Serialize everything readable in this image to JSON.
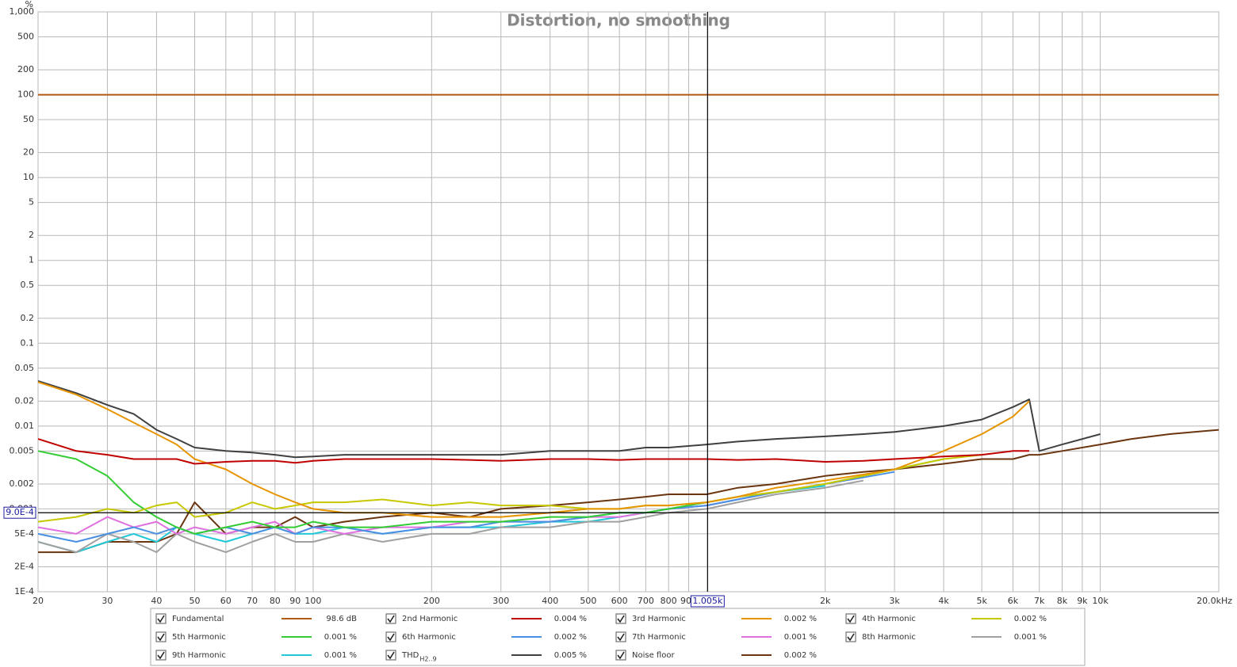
{
  "chart_data": {
    "type": "line",
    "title": "Distortion, no smoothing",
    "y_unit": "%",
    "xscale": "log",
    "yscale": "log",
    "grid": true,
    "xlim": [
      20,
      20000
    ],
    "ylim": [
      0.0001,
      1000
    ],
    "xticks": [
      20,
      30,
      40,
      50,
      60,
      70,
      80,
      90,
      100,
      200,
      300,
      400,
      500,
      600,
      700,
      800,
      900,
      {
        "value": 2000,
        "label": "2k"
      },
      {
        "value": 3000,
        "label": "3k"
      },
      {
        "value": 4000,
        "label": "4k"
      },
      {
        "value": 5000,
        "label": "5k"
      },
      {
        "value": 6000,
        "label": "6k"
      },
      {
        "value": 7000,
        "label": "7k"
      },
      {
        "value": 8000,
        "label": "8k"
      },
      {
        "value": 9000,
        "label": "9k"
      },
      {
        "value": 10000,
        "label": "10k"
      },
      {
        "value": 20000,
        "label": "20.0kHz"
      }
    ],
    "yticks": [
      {
        "value": 1000,
        "label": "1,000"
      },
      500,
      200,
      100,
      50,
      20,
      10,
      5,
      2,
      1,
      0.5,
      0.2,
      0.1,
      0.05,
      0.02,
      0.01,
      0.005,
      0.002,
      0.001,
      {
        "value": 0.0005,
        "label": "5E-4"
      },
      {
        "value": 0.0002,
        "label": "2E-4"
      },
      {
        "value": 0.0001,
        "label": "1E-4"
      }
    ],
    "cursor": {
      "x": {
        "value": 1005,
        "label": "1.005k"
      },
      "y": {
        "value": 0.0009,
        "label": "9.0E-4"
      }
    },
    "x": [
      20,
      25,
      30,
      35,
      40,
      45,
      50,
      60,
      70,
      80,
      90,
      100,
      120,
      150,
      200,
      250,
      300,
      400,
      500,
      600,
      700,
      800,
      1000,
      1200,
      1500,
      2000,
      2500,
      3000,
      4000,
      5000,
      6000,
      6600,
      7000,
      8000,
      10000,
      12000,
      15000,
      20000
    ],
    "series": [
      {
        "name": "Fundamental",
        "color": "#b05a10",
        "readout": "98.6 dB",
        "values": [
          100,
          100,
          100,
          100,
          100,
          100,
          100,
          100,
          100,
          100,
          100,
          100,
          100,
          100,
          100,
          100,
          100,
          100,
          100,
          100,
          100,
          100,
          100,
          100,
          100,
          100,
          100,
          100,
          100,
          100,
          100,
          100,
          100,
          100,
          100,
          100,
          100,
          100
        ]
      },
      {
        "name": "2nd Harmonic",
        "color": "#c00000",
        "readout": "0.004 %",
        "values": [
          0.007,
          0.005,
          0.0045,
          0.004,
          0.004,
          0.004,
          0.0035,
          0.0037,
          0.0038,
          0.0038,
          0.0036,
          0.0038,
          0.004,
          0.004,
          0.004,
          0.0039,
          0.0038,
          0.004,
          0.004,
          0.0039,
          0.004,
          0.004,
          0.004,
          0.0039,
          0.004,
          0.0037,
          0.0038,
          0.004,
          0.0043,
          0.0045,
          0.005,
          0.005,
          null,
          null,
          null,
          null,
          null,
          null
        ]
      },
      {
        "name": "3rd Harmonic",
        "color": "#e69500",
        "readout": "0.002 %",
        "values": [
          0.034,
          0.024,
          0.016,
          0.011,
          0.008,
          0.006,
          0.004,
          0.003,
          0.002,
          0.0015,
          0.0012,
          0.001,
          0.0009,
          0.0009,
          0.0008,
          0.0008,
          0.0008,
          0.0009,
          0.001,
          0.001,
          0.0011,
          0.0011,
          0.0012,
          0.0014,
          0.0018,
          0.0022,
          0.0026,
          0.003,
          0.005,
          0.008,
          0.013,
          0.02,
          null,
          null,
          null,
          null,
          null,
          null
        ]
      },
      {
        "name": "4th Harmonic",
        "color": "#c8c800",
        "readout": "0.002 %",
        "values": [
          0.0007,
          0.0008,
          0.001,
          0.0009,
          0.0011,
          0.0012,
          0.0008,
          0.0009,
          0.0012,
          0.001,
          0.0011,
          0.0012,
          0.0012,
          0.0013,
          0.0011,
          0.0012,
          0.0011,
          0.0011,
          0.001,
          0.001,
          0.0011,
          0.0011,
          0.0012,
          0.0014,
          0.0016,
          0.002,
          0.0025,
          0.003,
          0.004,
          0.0045,
          null,
          null,
          null,
          null,
          null,
          null,
          null,
          null
        ]
      },
      {
        "name": "5th Harmonic",
        "color": "#33cc33",
        "readout": "0.001 %",
        "values": [
          0.005,
          0.004,
          0.0025,
          0.0012,
          0.0008,
          0.0006,
          0.0005,
          0.0006,
          0.0007,
          0.0006,
          0.0006,
          0.0007,
          0.0006,
          0.0006,
          0.0007,
          0.0007,
          0.0007,
          0.0008,
          0.0008,
          0.0009,
          0.0009,
          0.001,
          0.0012,
          0.0014,
          0.0016,
          0.002,
          0.0025,
          0.003,
          0.004,
          null,
          null,
          null,
          null,
          null,
          null,
          null,
          null,
          null
        ]
      },
      {
        "name": "6th Harmonic",
        "color": "#4a90e2",
        "readout": "0.002 %",
        "values": [
          0.0005,
          0.0004,
          0.0005,
          0.0006,
          0.0005,
          0.0006,
          0.0005,
          0.0006,
          0.0005,
          0.0006,
          0.0005,
          0.0006,
          0.0006,
          0.0005,
          0.0006,
          0.0006,
          0.0007,
          0.0007,
          0.0008,
          0.0009,
          0.0009,
          0.001,
          0.0011,
          0.0013,
          0.0016,
          0.002,
          0.0024,
          0.0028,
          null,
          null,
          null,
          null,
          null,
          null,
          null,
          null,
          null,
          null
        ]
      },
      {
        "name": "7th Harmonic",
        "color": "#e070e0",
        "readout": "0.001 %",
        "values": [
          0.0006,
          0.0005,
          0.0008,
          0.0006,
          0.0007,
          0.0005,
          0.0006,
          0.0005,
          0.0006,
          0.0007,
          0.0005,
          0.0006,
          0.0005,
          0.0006,
          0.0006,
          0.0007,
          0.0007,
          0.0007,
          0.0008,
          0.0008,
          0.0009,
          0.001,
          0.0011,
          0.0013,
          0.0016,
          0.002,
          0.0024,
          null,
          null,
          null,
          null,
          null,
          null,
          null,
          null,
          null,
          null,
          null
        ]
      },
      {
        "name": "8th Harmonic",
        "color": "#a0a0a0",
        "readout": "0.001 %",
        "values": [
          0.0004,
          0.0003,
          0.0005,
          0.0004,
          0.0003,
          0.0005,
          0.0004,
          0.0003,
          0.0004,
          0.0005,
          0.0004,
          0.0004,
          0.0005,
          0.0004,
          0.0005,
          0.0005,
          0.0006,
          0.0006,
          0.0007,
          0.0007,
          0.0008,
          0.0009,
          0.001,
          0.0012,
          0.0015,
          0.0018,
          0.0022,
          null,
          null,
          null,
          null,
          null,
          null,
          null,
          null,
          null,
          null,
          null
        ]
      },
      {
        "name": "9th Harmonic",
        "color": "#20c8d8",
        "readout": "0.001 %",
        "values": [
          0.0004,
          0.0003,
          0.0004,
          0.0005,
          0.0004,
          0.0006,
          0.0005,
          0.0004,
          0.0005,
          0.0006,
          0.0005,
          0.0005,
          0.0006,
          0.0005,
          0.0006,
          0.0006,
          0.0006,
          0.0007,
          0.0007,
          0.0008,
          0.0009,
          0.001,
          0.0011,
          0.0013,
          0.0016,
          0.0019,
          null,
          null,
          null,
          null,
          null,
          null,
          null,
          null,
          null,
          null,
          null,
          null
        ]
      },
      {
        "name": "THD",
        "name_subscript": "H2..9",
        "color": "#404040",
        "readout": "0.005 %",
        "values": [
          0.035,
          0.025,
          0.018,
          0.014,
          0.009,
          0.007,
          0.0055,
          0.005,
          0.0048,
          0.0045,
          0.0042,
          0.0043,
          0.0045,
          0.0045,
          0.0045,
          0.0045,
          0.0045,
          0.005,
          0.005,
          0.005,
          0.0055,
          0.0055,
          0.006,
          0.0065,
          0.007,
          0.0075,
          0.008,
          0.0085,
          0.01,
          0.012,
          0.017,
          0.021,
          0.005,
          0.006,
          0.008,
          null,
          null,
          null
        ]
      },
      {
        "name": "Noise floor",
        "color": "#6b3510",
        "readout": "0.002 %",
        "values": [
          0.0003,
          0.0003,
          0.0004,
          0.0004,
          0.0004,
          0.0005,
          0.0012,
          0.0005,
          0.0006,
          0.0006,
          0.0008,
          0.0006,
          0.0007,
          0.0008,
          0.0009,
          0.0008,
          0.001,
          0.0011,
          0.0012,
          0.0013,
          0.0014,
          0.0015,
          0.0015,
          0.0018,
          0.002,
          0.0025,
          0.0028,
          0.003,
          0.0035,
          0.004,
          0.004,
          0.0045,
          0.0045,
          0.005,
          0.006,
          0.007,
          0.008,
          0.009
        ]
      }
    ]
  }
}
